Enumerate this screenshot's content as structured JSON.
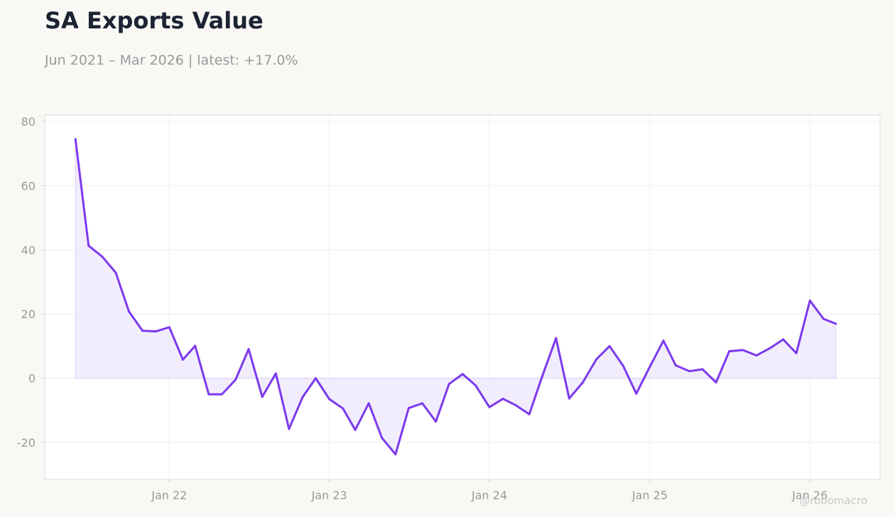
{
  "header": {
    "title": "SA Exports Value",
    "subtitle": "Jun 2021 – Mar 2026 | latest: +17.0%"
  },
  "watermark": "@robomacro",
  "colors": {
    "line": "#7c3aed",
    "fill": "#ede5fc",
    "grid": "#eeeeee",
    "background": "#f9f8f5",
    "plot_background": "#ffffff"
  },
  "chart_data": {
    "type": "area",
    "title": "SA Exports Value",
    "xlabel": "",
    "ylabel": "",
    "ylim": [
      -31.5,
      82
    ],
    "xlim": [
      "2021-03-23",
      "2026-06-10"
    ],
    "yticks": [
      80,
      60,
      40,
      20,
      0,
      -20
    ],
    "ytick_labels": [
      "80",
      "60",
      "40",
      "20",
      "0",
      "-20"
    ],
    "xticks": [
      "2022-01-01",
      "2023-01-01",
      "2024-01-01",
      "2025-01-01",
      "2026-01-01"
    ],
    "xtick_labels": [
      "Jan 22",
      "Jan 23",
      "Jan 24",
      "Jan 25",
      "Jan 26"
    ],
    "grid": true,
    "x": [
      "2021-06-01",
      "2021-07-01",
      "2021-08-01",
      "2021-09-01",
      "2021-10-01",
      "2021-11-01",
      "2021-12-01",
      "2022-01-01",
      "2022-02-01",
      "2022-03-01",
      "2022-04-01",
      "2022-05-01",
      "2022-06-01",
      "2022-07-01",
      "2022-08-01",
      "2022-09-01",
      "2022-10-01",
      "2022-11-01",
      "2022-12-01",
      "2023-01-01",
      "2023-02-01",
      "2023-03-01",
      "2023-04-01",
      "2023-05-01",
      "2023-06-01",
      "2023-07-01",
      "2023-08-01",
      "2023-09-01",
      "2023-10-01",
      "2023-11-01",
      "2023-12-01",
      "2024-01-01",
      "2024-02-01",
      "2024-03-01",
      "2024-04-01",
      "2024-05-01",
      "2024-06-01",
      "2024-07-01",
      "2024-08-01",
      "2024-09-01",
      "2024-10-01",
      "2024-11-01",
      "2024-12-01",
      "2025-01-01",
      "2025-02-01",
      "2025-03-01",
      "2025-04-01",
      "2025-05-01",
      "2025-06-01",
      "2025-07-01",
      "2025-08-01",
      "2025-09-01",
      "2025-10-01",
      "2025-11-01",
      "2025-12-01",
      "2026-01-01",
      "2026-02-01",
      "2026-03-01"
    ],
    "series": [
      {
        "values": [
          74.5,
          41.3,
          37.9,
          32.9,
          20.8,
          14.8,
          14.6,
          15.9,
          5.8,
          10.1,
          -5.0,
          -5.0,
          -0.5,
          9.1,
          -5.8,
          1.5,
          -15.8,
          -5.9,
          0.0,
          -6.5,
          -9.4,
          -16.1,
          -7.8,
          -18.6,
          -23.7,
          -9.3,
          -7.8,
          -13.5,
          -1.8,
          1.3,
          -2.3,
          -9.0,
          -6.4,
          -8.4,
          -11.2,
          0.8,
          12.5,
          -6.3,
          -1.3,
          5.9,
          10.0,
          3.9,
          -4.8,
          3.6,
          11.7,
          4.0,
          2.2,
          2.8,
          -1.3,
          8.4,
          8.8,
          7.1,
          9.3,
          12.1,
          7.8,
          24.2,
          18.5,
          17.0
        ]
      }
    ]
  }
}
